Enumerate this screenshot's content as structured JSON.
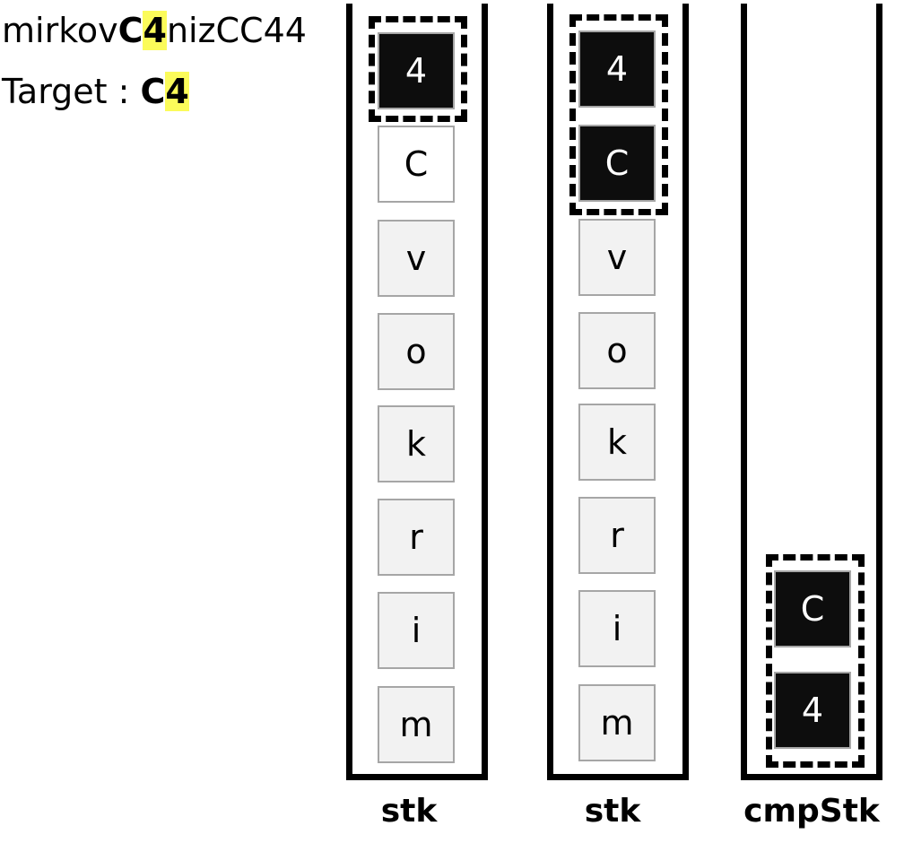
{
  "input": {
    "before": "mirkov",
    "match_c": "C",
    "match_4": "4",
    "after": "nizCC44"
  },
  "target": {
    "label": "Target",
    "colon": " : ",
    "c": "C",
    "four": "4"
  },
  "stacks": [
    {
      "label": "stk",
      "cells": [
        {
          "text": "4",
          "style": "dark"
        },
        {
          "text": "C",
          "style": "white"
        },
        {
          "text": "v",
          "style": "gray"
        },
        {
          "text": "o",
          "style": "gray"
        },
        {
          "text": "k",
          "style": "gray"
        },
        {
          "text": "r",
          "style": "gray"
        },
        {
          "text": "i",
          "style": "gray"
        },
        {
          "text": "m",
          "style": "gray"
        }
      ]
    },
    {
      "label": "stk",
      "cells": [
        {
          "text": "4",
          "style": "dark"
        },
        {
          "text": "C",
          "style": "dark"
        },
        {
          "text": "v",
          "style": "gray"
        },
        {
          "text": "o",
          "style": "gray"
        },
        {
          "text": "k",
          "style": "gray"
        },
        {
          "text": "r",
          "style": "gray"
        },
        {
          "text": "i",
          "style": "gray"
        },
        {
          "text": "m",
          "style": "gray"
        }
      ]
    },
    {
      "label": "cmpStk",
      "cells": [
        {
          "text": "C",
          "style": "dark"
        },
        {
          "text": "4",
          "style": "dark"
        }
      ]
    }
  ],
  "colors": {
    "highlight": "#fbfb5a",
    "dark_cell": "#0d0d0d",
    "gray_cell": "#f2f2f2",
    "cell_border": "#a6a6a6"
  }
}
